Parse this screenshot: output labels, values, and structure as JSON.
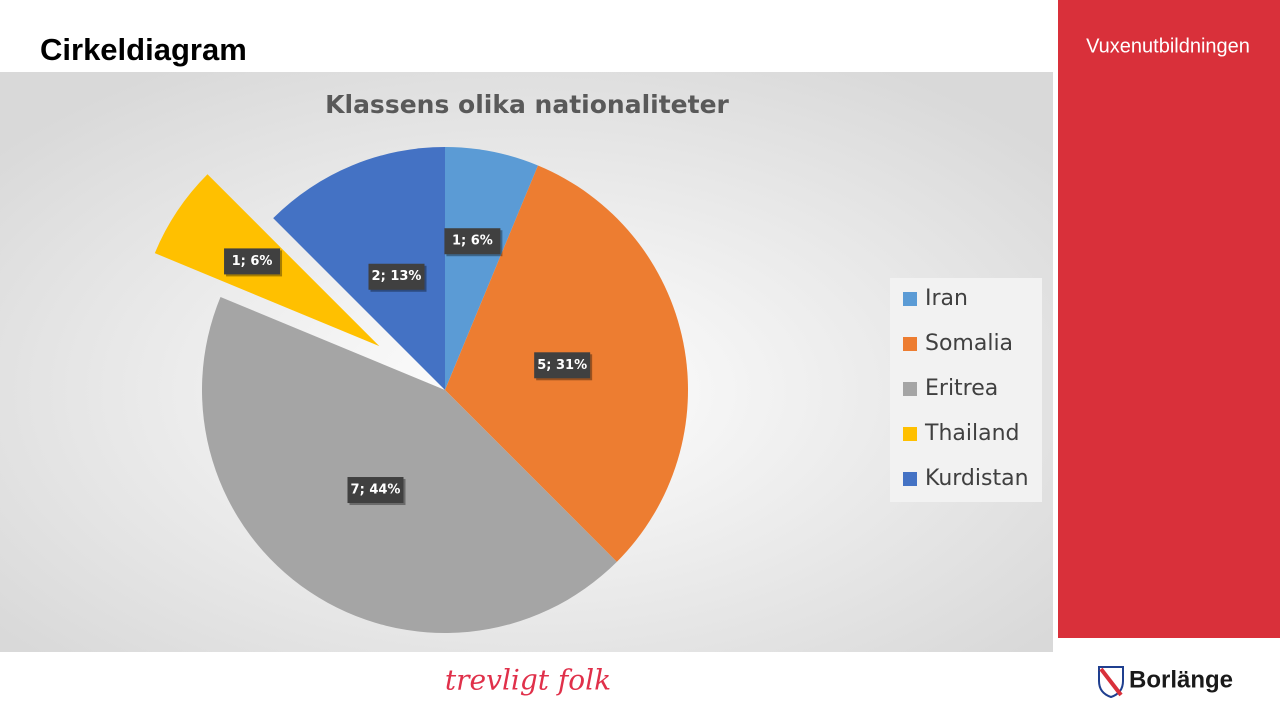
{
  "slide": {
    "title": "Cirkeldiagram",
    "side_label": "Vuxenutbildningen",
    "footer_logo": "trevligt folk",
    "footer_brand": "Borlänge"
  },
  "chart_data": {
    "type": "pie",
    "title": "Klassens olika nationaliteter",
    "categories": [
      "Iran",
      "Somalia",
      "Eritrea",
      "Thailand",
      "Kurdistan"
    ],
    "values": [
      1,
      5,
      7,
      1,
      2
    ],
    "value_labels": [
      "1; 6%",
      "5; 31%",
      "7; 44%",
      "1; 6%",
      "2; 13%"
    ],
    "colors": [
      "#5b9bd5",
      "#ed7d31",
      "#a5a5a5",
      "#ffc000",
      "#4472c4"
    ],
    "legend": "right"
  }
}
